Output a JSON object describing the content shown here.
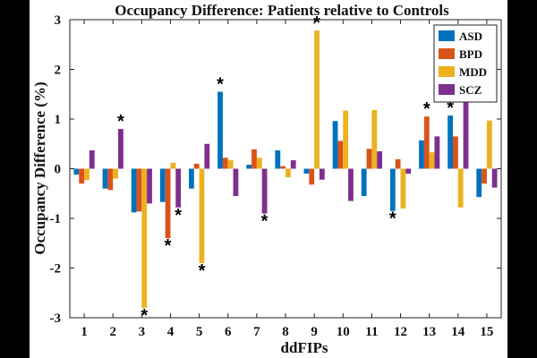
{
  "chart_data": {
    "type": "bar",
    "title": "Occupancy Difference: Patients relative to Controls",
    "xlabel": "ddFIPs",
    "ylabel": "Occupancy Difference (%)",
    "categories": [
      "1",
      "2",
      "3",
      "4",
      "5",
      "6",
      "7",
      "8",
      "9",
      "10",
      "11",
      "12",
      "13",
      "14",
      "15"
    ],
    "ylim": [
      -3,
      3
    ],
    "yticks": [
      "-3",
      "-2",
      "-1",
      "0",
      "1",
      "2",
      "3"
    ],
    "legend_position": "top-right",
    "significance_marker": "*",
    "series": [
      {
        "name": "ASD",
        "color": "#0072BD",
        "values": [
          -0.12,
          -0.4,
          -0.88,
          -0.67,
          -0.4,
          1.55,
          0.08,
          0.37,
          -0.1,
          0.96,
          -0.55,
          -0.85,
          0.57,
          1.07,
          -0.57
        ],
        "significant": [
          false,
          false,
          false,
          false,
          false,
          true,
          false,
          false,
          false,
          false,
          false,
          true,
          false,
          true,
          false
        ]
      },
      {
        "name": "BPD",
        "color": "#D95319",
        "values": [
          -0.3,
          -0.43,
          -0.86,
          -1.4,
          0.1,
          0.22,
          0.39,
          0.05,
          -0.32,
          0.56,
          0.4,
          0.19,
          1.05,
          0.65,
          -0.3
        ],
        "significant": [
          false,
          false,
          false,
          true,
          false,
          false,
          false,
          false,
          false,
          false,
          false,
          false,
          true,
          false,
          false
        ]
      },
      {
        "name": "MDD",
        "color": "#EDB120",
        "values": [
          -0.23,
          -0.2,
          -2.8,
          0.12,
          -1.9,
          0.17,
          0.22,
          -0.17,
          2.78,
          1.17,
          1.18,
          -0.8,
          0.33,
          -0.78,
          0.97
        ],
        "significant": [
          false,
          false,
          true,
          false,
          true,
          false,
          false,
          false,
          true,
          false,
          false,
          false,
          false,
          false,
          false
        ]
      },
      {
        "name": "SCZ",
        "color": "#7E2F8E",
        "values": [
          0.37,
          0.8,
          -0.7,
          -0.78,
          0.5,
          -0.55,
          -0.9,
          0.17,
          -0.22,
          -0.65,
          0.35,
          -0.1,
          0.65,
          1.42,
          -0.38
        ],
        "significant": [
          false,
          true,
          false,
          true,
          false,
          false,
          true,
          false,
          false,
          false,
          false,
          false,
          false,
          true,
          false
        ]
      }
    ]
  }
}
